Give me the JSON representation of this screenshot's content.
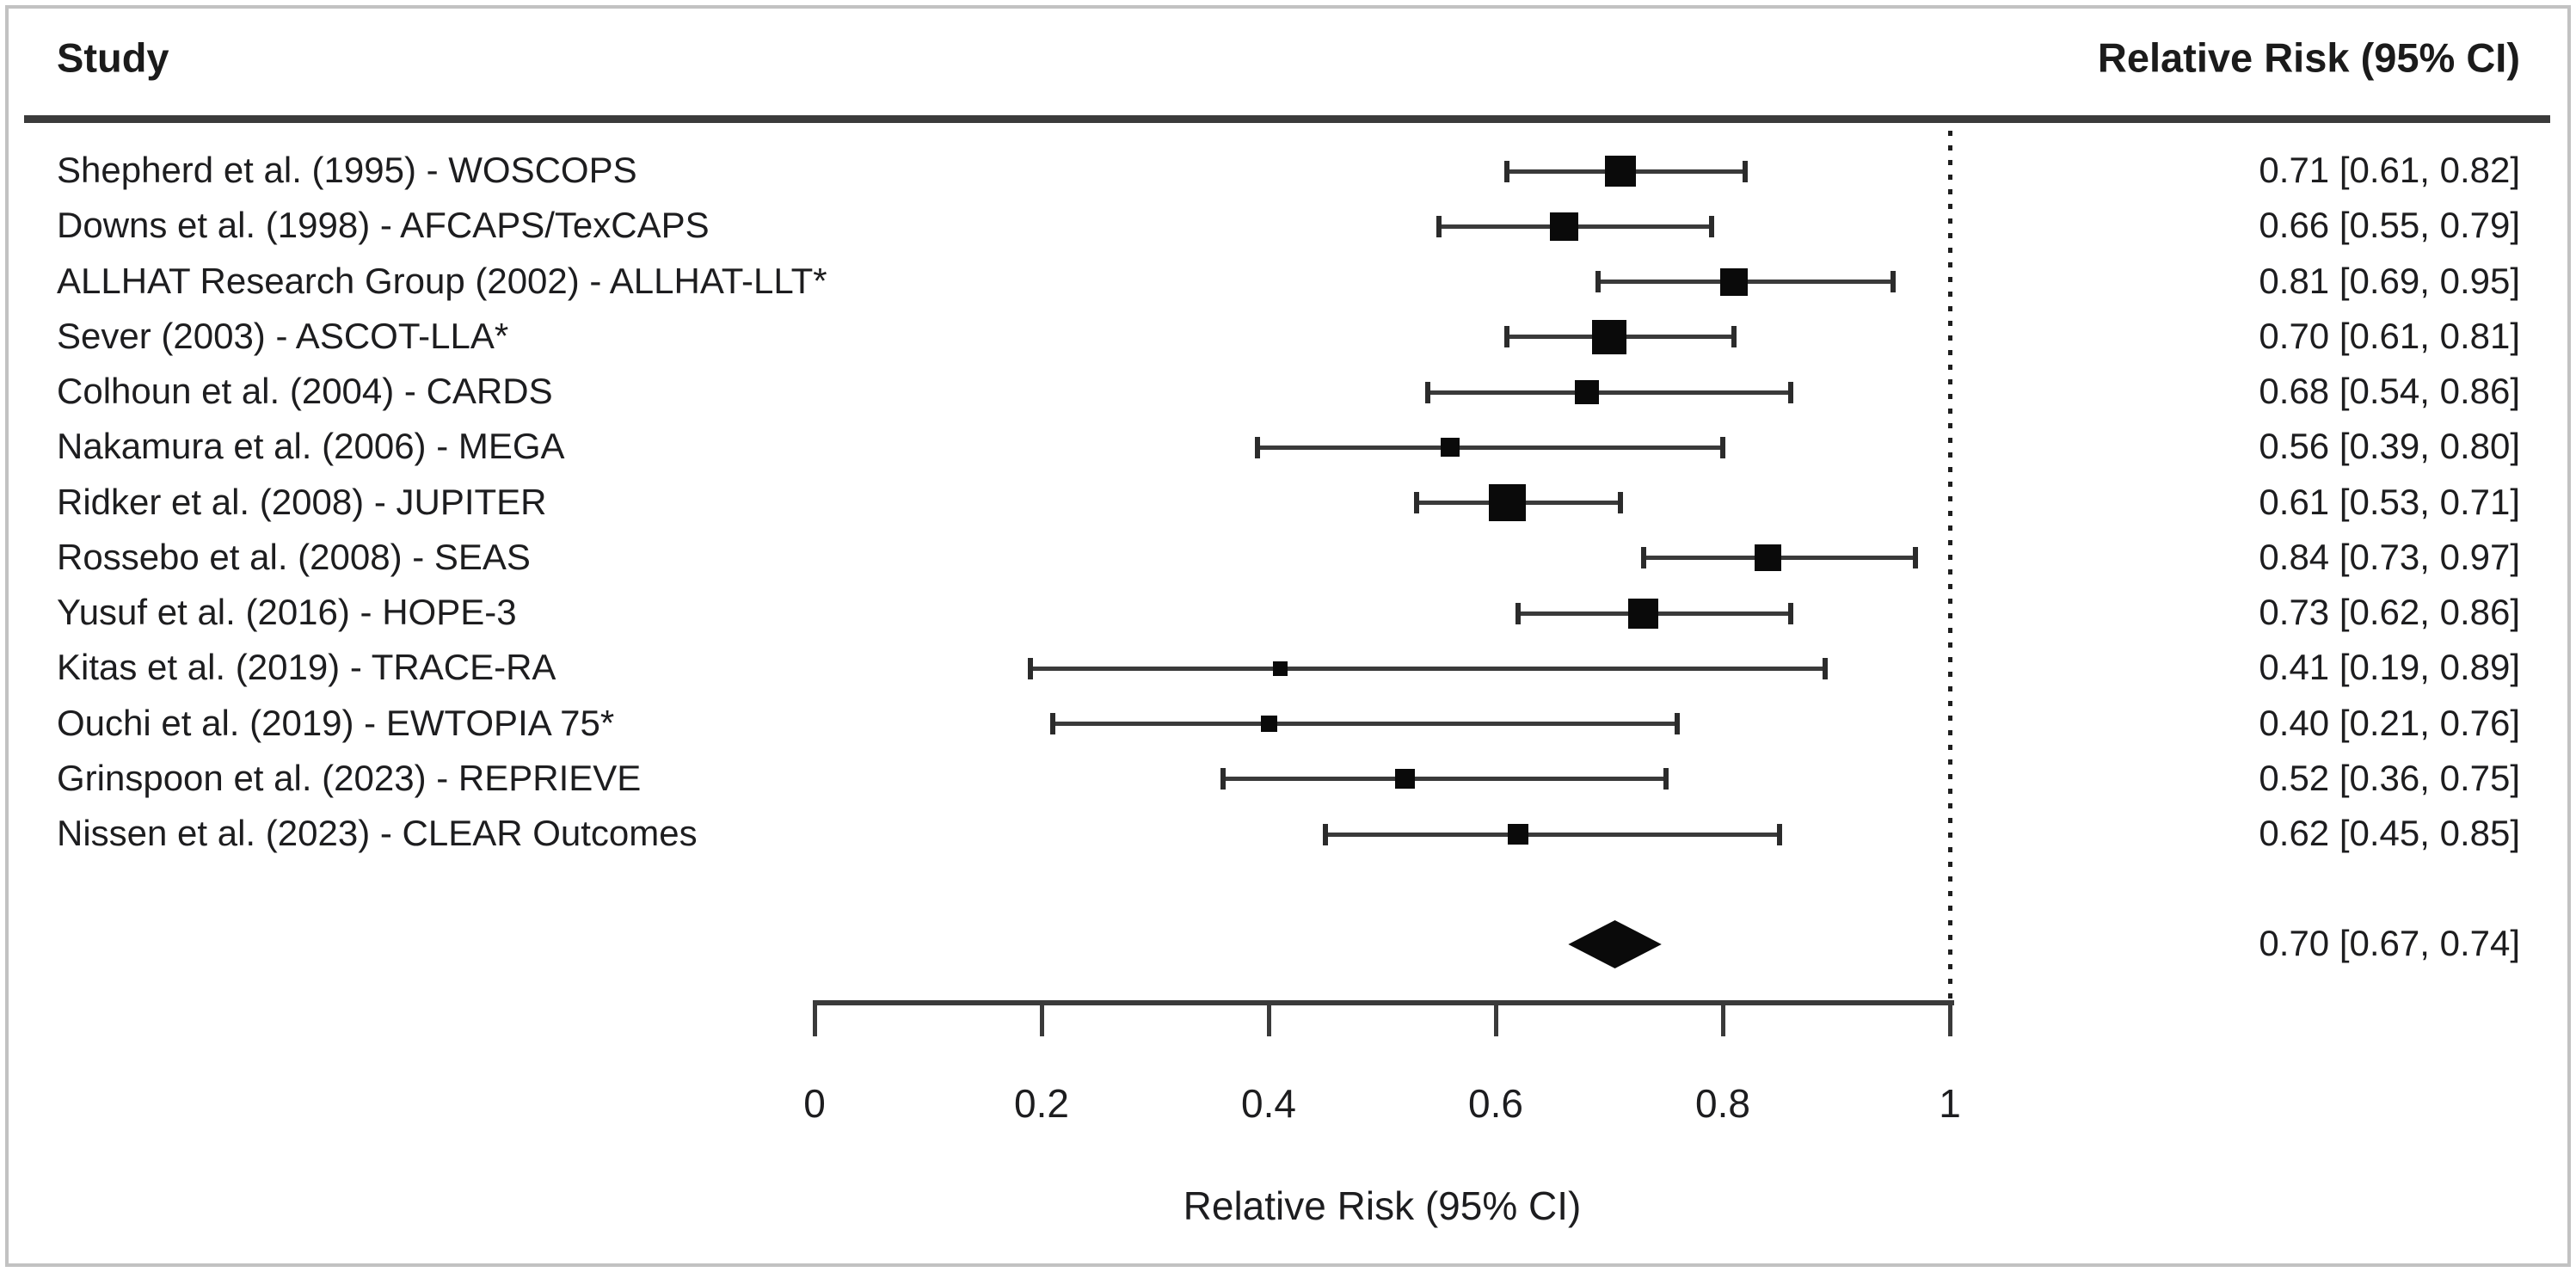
{
  "header": {
    "study_column": "Study",
    "rr_column": "Relative Risk (95% CI)"
  },
  "colors": {
    "background": "#ffffff",
    "frame_border": "#c2c2c2",
    "text": "#1d1d1f",
    "line": "#3a3a3a",
    "marker": "#0a0a0a"
  },
  "chart_data": {
    "type": "forest",
    "title": "",
    "xlabel": "Relative Risk (95% CI)",
    "x_axis": {
      "label": "Relative Risk (95% CI)",
      "ticks": [
        "0",
        "0.2",
        "0.4",
        "0.6",
        "0.8",
        "1"
      ],
      "tick_values": [
        0,
        0.2,
        0.4,
        0.6,
        0.8,
        1
      ],
      "range": [
        0,
        1
      ],
      "reference_line": 1.0,
      "reference_line_style": "dotted"
    },
    "studies": [
      {
        "label": "Shepherd et al. (1995) - WOSCOPS",
        "rr": 0.71,
        "ci_low": 0.61,
        "ci_high": 0.82,
        "value_text": "0.71 [0.61, 0.82]",
        "marker_size": 36
      },
      {
        "label": "Downs et al. (1998) - AFCAPS/TexCAPS",
        "rr": 0.66,
        "ci_low": 0.55,
        "ci_high": 0.79,
        "value_text": "0.66 [0.55, 0.79]",
        "marker_size": 33
      },
      {
        "label": "ALLHAT Research Group (2002) - ALLHAT-LLT*",
        "rr": 0.81,
        "ci_low": 0.69,
        "ci_high": 0.95,
        "value_text": "0.81 [0.69, 0.95]",
        "marker_size": 32
      },
      {
        "label": "Sever (2003) - ASCOT-LLA*",
        "rr": 0.7,
        "ci_low": 0.61,
        "ci_high": 0.81,
        "value_text": "0.70 [0.61, 0.81]",
        "marker_size": 40
      },
      {
        "label": "Colhoun et al. (2004) - CARDS",
        "rr": 0.68,
        "ci_low": 0.54,
        "ci_high": 0.86,
        "value_text": "0.68 [0.54, 0.86]",
        "marker_size": 28
      },
      {
        "label": "Nakamura et al. (2006) - MEGA",
        "rr": 0.56,
        "ci_low": 0.39,
        "ci_high": 0.8,
        "value_text": "0.56 [0.39, 0.80]",
        "marker_size": 22
      },
      {
        "label": "Ridker et al. (2008) - JUPITER",
        "rr": 0.61,
        "ci_low": 0.53,
        "ci_high": 0.71,
        "value_text": "0.61 [0.53, 0.71]",
        "marker_size": 43
      },
      {
        "label": "Rossebo et al. (2008) - SEAS",
        "rr": 0.84,
        "ci_low": 0.73,
        "ci_high": 0.97,
        "value_text": "0.84 [0.73, 0.97]",
        "marker_size": 31
      },
      {
        "label": "Yusuf et al. (2016) - HOPE-3",
        "rr": 0.73,
        "ci_low": 0.62,
        "ci_high": 0.86,
        "value_text": "0.73 [0.62, 0.86]",
        "marker_size": 35
      },
      {
        "label": "Kitas et al. (2019) - TRACE-RA",
        "rr": 0.41,
        "ci_low": 0.19,
        "ci_high": 0.89,
        "value_text": "0.41 [0.19, 0.89]",
        "marker_size": 17
      },
      {
        "label": "Ouchi et al. (2019) - EWTOPIA 75*",
        "rr": 0.4,
        "ci_low": 0.21,
        "ci_high": 0.76,
        "value_text": "0.40 [0.21, 0.76]",
        "marker_size": 19
      },
      {
        "label": "Grinspoon et al. (2023) - REPRIEVE",
        "rr": 0.52,
        "ci_low": 0.36,
        "ci_high": 0.75,
        "value_text": "0.52 [0.36, 0.75]",
        "marker_size": 23
      },
      {
        "label": "Nissen et al. (2023) - CLEAR Outcomes",
        "rr": 0.62,
        "ci_low": 0.45,
        "ci_high": 0.85,
        "value_text": "0.62 [0.45, 0.85]",
        "marker_size": 24
      }
    ],
    "pooled": {
      "rr": 0.7,
      "ci_low": 0.67,
      "ci_high": 0.74,
      "value_text": "0.70 [0.67, 0.74]"
    }
  }
}
